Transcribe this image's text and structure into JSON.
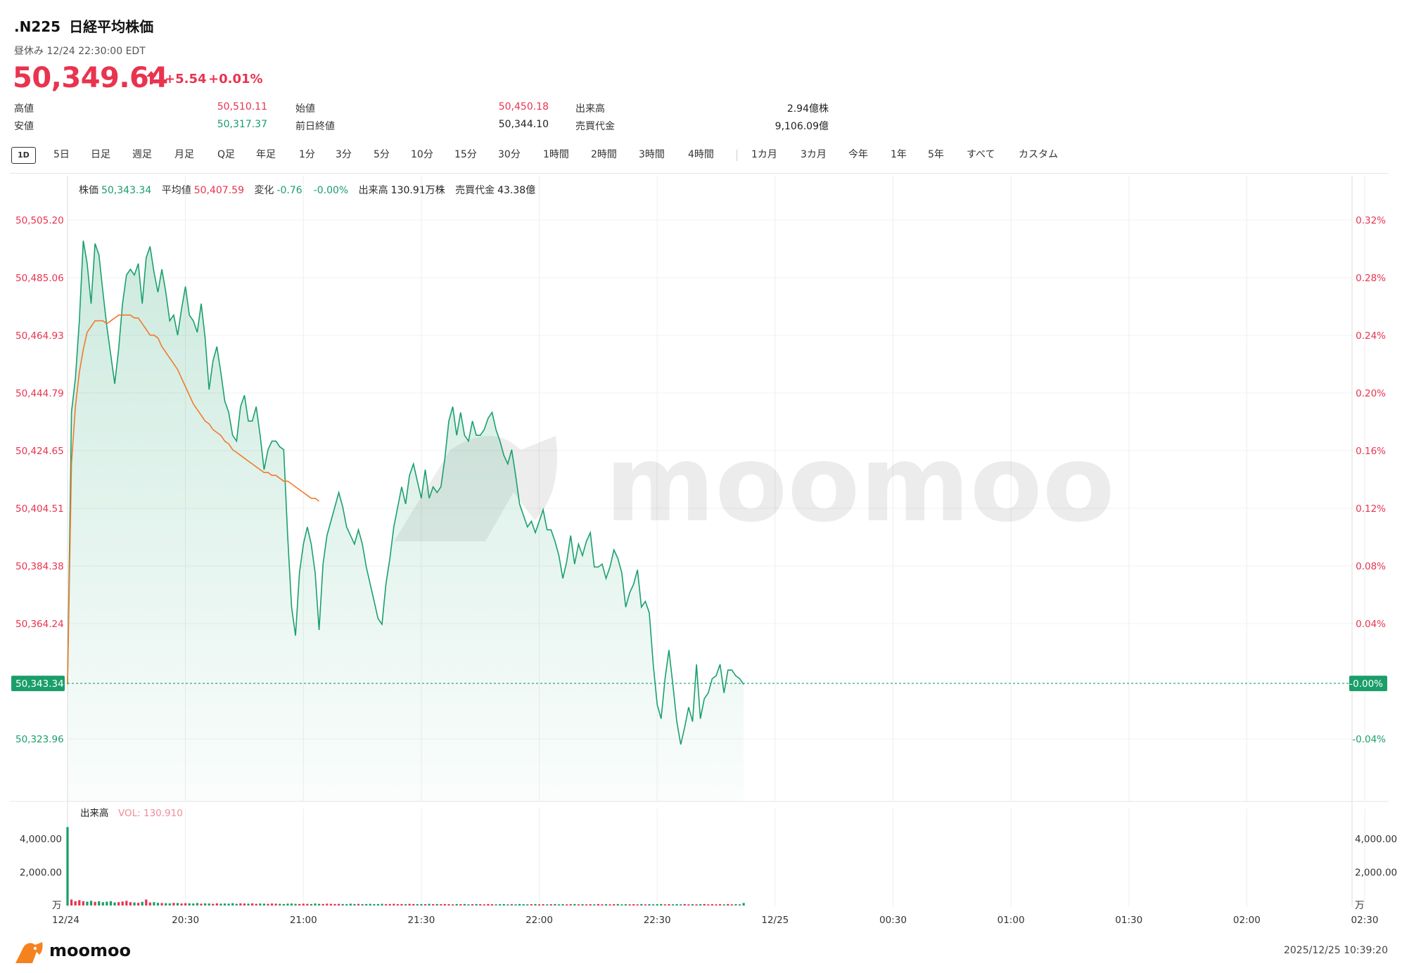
{
  "header": {
    "symbol": ".N225",
    "name": "日経平均株価",
    "status": "昼休み 12/24 22:30:00 EDT",
    "price": "50,349.64",
    "change": "+5.54",
    "change_pct": "+0.01%",
    "up_color": "#e8344f",
    "down_color": "#1a9e6a"
  },
  "stats": {
    "high_label": "高値",
    "high": "50,510.11",
    "low_label": "安値",
    "low": "50,317.37",
    "open_label": "始値",
    "open": "50,450.18",
    "prev_close_label": "前日終値",
    "prev_close": "50,344.10",
    "volume_label": "出来高",
    "volume": "2.94億株",
    "turnover_label": "売買代金",
    "turnover": "9,106.09億"
  },
  "tabs": [
    "1D",
    "5日",
    "日足",
    "週足",
    "月足",
    "Q足",
    "年足",
    "1分",
    "3分",
    "5分",
    "10分",
    "15分",
    "30分",
    "1時間",
    "2時間",
    "3時間",
    "4時間",
    "1カ月",
    "3カ月",
    "今年",
    "1年",
    "5年",
    "すべて",
    "カスタム"
  ],
  "active_tab": "1D",
  "infobar": {
    "price_label": "株価",
    "price": "50,343.34",
    "avg_label": "平均値",
    "avg": "50,407.59",
    "change_label": "変化",
    "change": "-0.76",
    "change_pct": "-0.00%",
    "vol_label": "出来高",
    "vol": "130.91万株",
    "turnover_label": "売買代金",
    "turnover": "43.38億"
  },
  "chart_data": {
    "type": "line",
    "y_ticks": [
      "50,505.20",
      "50,485.06",
      "50,464.93",
      "50,444.79",
      "50,424.65",
      "50,404.51",
      "50,384.38",
      "50,364.24",
      "50,323.96"
    ],
    "y_tick_values": [
      50505.2,
      50485.06,
      50464.93,
      50444.79,
      50424.65,
      50404.51,
      50384.38,
      50364.24,
      50323.96
    ],
    "pct_ticks": [
      "0.32%",
      "0.28%",
      "0.24%",
      "0.20%",
      "0.16%",
      "0.12%",
      "0.08%",
      "0.04%",
      "-0.04%"
    ],
    "pct_tick_values": [
      50505.2,
      50485.06,
      50464.93,
      50444.79,
      50424.65,
      50404.51,
      50384.38,
      50364.24,
      50323.96
    ],
    "last_price_label": "50,343.34",
    "last_price": 50343.34,
    "zero_pct_label": "-0.00%",
    "x_ticks": [
      "12/24",
      "20:30",
      "21:00",
      "21:30",
      "22:00",
      "22:30",
      "12/25",
      "00:30",
      "01:00",
      "01:30",
      "02:00",
      "02:30"
    ],
    "x_tick_minutes": [
      0,
      30,
      60,
      90,
      120,
      150,
      180,
      210,
      240,
      270,
      300,
      330
    ],
    "price_series": [
      [
        0,
        50343
      ],
      [
        1,
        50438
      ],
      [
        2,
        50450
      ],
      [
        3,
        50470
      ],
      [
        4,
        50498
      ],
      [
        5,
        50490
      ],
      [
        6,
        50476
      ],
      [
        7,
        50497
      ],
      [
        8,
        50493
      ],
      [
        9,
        50480
      ],
      [
        10,
        50468
      ],
      [
        11,
        50458
      ],
      [
        12,
        50448
      ],
      [
        13,
        50460
      ],
      [
        14,
        50476
      ],
      [
        15,
        50486
      ],
      [
        16,
        50488
      ],
      [
        17,
        50486
      ],
      [
        18,
        50490
      ],
      [
        19,
        50476
      ],
      [
        20,
        50492
      ],
      [
        21,
        50496
      ],
      [
        22,
        50487
      ],
      [
        23,
        50480
      ],
      [
        24,
        50488
      ],
      [
        25,
        50480
      ],
      [
        26,
        50470
      ],
      [
        27,
        50472
      ],
      [
        28,
        50465
      ],
      [
        29,
        50474
      ],
      [
        30,
        50482
      ],
      [
        31,
        50472
      ],
      [
        32,
        50470
      ],
      [
        33,
        50466
      ],
      [
        34,
        50476
      ],
      [
        35,
        50464
      ],
      [
        36,
        50446
      ],
      [
        37,
        50456
      ],
      [
        38,
        50461
      ],
      [
        39,
        50452
      ],
      [
        40,
        50442
      ],
      [
        41,
        50438
      ],
      [
        42,
        50430
      ],
      [
        43,
        50428
      ],
      [
        44,
        50440
      ],
      [
        45,
        50444
      ],
      [
        46,
        50435
      ],
      [
        47,
        50435
      ],
      [
        48,
        50440
      ],
      [
        49,
        50430
      ],
      [
        50,
        50418
      ],
      [
        51,
        50425
      ],
      [
        52,
        50428
      ],
      [
        53,
        50428
      ],
      [
        54,
        50426
      ],
      [
        55,
        50425
      ],
      [
        56,
        50395
      ],
      [
        57,
        50370
      ],
      [
        58,
        50360
      ],
      [
        59,
        50382
      ],
      [
        60,
        50392
      ],
      [
        61,
        50398
      ],
      [
        62,
        50392
      ],
      [
        63,
        50382
      ],
      [
        64,
        50362
      ],
      [
        65,
        50385
      ],
      [
        66,
        50395
      ],
      [
        67,
        50400
      ],
      [
        68,
        50405
      ],
      [
        69,
        50410
      ],
      [
        70,
        50405
      ],
      [
        71,
        50398
      ],
      [
        72,
        50395
      ],
      [
        73,
        50392
      ],
      [
        74,
        50397
      ],
      [
        75,
        50392
      ],
      [
        76,
        50384
      ],
      [
        77,
        50378
      ],
      [
        78,
        50372
      ],
      [
        79,
        50366
      ],
      [
        80,
        50364
      ],
      [
        81,
        50378
      ],
      [
        82,
        50387
      ],
      [
        83,
        50398
      ],
      [
        84,
        50405
      ],
      [
        85,
        50412
      ],
      [
        86,
        50406
      ],
      [
        87,
        50416
      ],
      [
        88,
        50420
      ],
      [
        89,
        50414
      ],
      [
        90,
        50408
      ],
      [
        91,
        50418
      ],
      [
        92,
        50408
      ],
      [
        93,
        50412
      ],
      [
        94,
        50410
      ],
      [
        95,
        50412
      ],
      [
        96,
        50422
      ],
      [
        97,
        50435
      ],
      [
        98,
        50440
      ],
      [
        99,
        50430
      ],
      [
        100,
        50438
      ],
      [
        101,
        50430
      ],
      [
        102,
        50428
      ],
      [
        103,
        50435
      ],
      [
        104,
        50430
      ],
      [
        105,
        50430
      ],
      [
        106,
        50432
      ],
      [
        107,
        50436
      ],
      [
        108,
        50438
      ],
      [
        109,
        50432
      ],
      [
        110,
        50428
      ],
      [
        111,
        50423
      ],
      [
        112,
        50420
      ],
      [
        113,
        50425
      ],
      [
        114,
        50416
      ],
      [
        115,
        50406
      ],
      [
        116,
        50402
      ],
      [
        117,
        50398
      ],
      [
        118,
        50400
      ],
      [
        119,
        50396
      ],
      [
        120,
        50400
      ],
      [
        121,
        50404
      ],
      [
        122,
        50397
      ],
      [
        123,
        50397
      ],
      [
        124,
        50393
      ],
      [
        125,
        50388
      ],
      [
        126,
        50380
      ],
      [
        127,
        50386
      ],
      [
        128,
        50395
      ],
      [
        129,
        50385
      ],
      [
        130,
        50392
      ],
      [
        131,
        50388
      ],
      [
        132,
        50393
      ],
      [
        133,
        50396
      ],
      [
        134,
        50384
      ],
      [
        135,
        50384
      ],
      [
        136,
        50385
      ],
      [
        137,
        50380
      ],
      [
        138,
        50384
      ],
      [
        139,
        50390
      ],
      [
        140,
        50387
      ],
      [
        141,
        50382
      ],
      [
        142,
        50370
      ],
      [
        143,
        50375
      ],
      [
        144,
        50378
      ],
      [
        145,
        50383
      ],
      [
        146,
        50370
      ],
      [
        147,
        50372
      ],
      [
        148,
        50368
      ],
      [
        149,
        50350
      ],
      [
        150,
        50336
      ],
      [
        151,
        50331
      ],
      [
        152,
        50345
      ],
      [
        153,
        50355
      ],
      [
        154,
        50343
      ],
      [
        155,
        50330
      ],
      [
        156,
        50322
      ],
      [
        157,
        50328
      ],
      [
        158,
        50335
      ],
      [
        159,
        50330
      ],
      [
        160,
        50350
      ],
      [
        161,
        50331
      ],
      [
        162,
        50338
      ],
      [
        163,
        50340
      ],
      [
        164,
        50345
      ],
      [
        165,
        50346
      ],
      [
        166,
        50350
      ],
      [
        167,
        50340
      ],
      [
        168,
        50348
      ],
      [
        169,
        50348
      ],
      [
        170,
        50346
      ],
      [
        171,
        50345
      ],
      [
        172,
        50343
      ]
    ],
    "avg_series": [
      [
        0,
        50343
      ],
      [
        1,
        50420
      ],
      [
        2,
        50440
      ],
      [
        3,
        50452
      ],
      [
        4,
        50460
      ],
      [
        5,
        50466
      ],
      [
        6,
        50468
      ],
      [
        7,
        50470
      ],
      [
        8,
        50470
      ],
      [
        9,
        50470
      ],
      [
        10,
        50469
      ],
      [
        11,
        50470
      ],
      [
        12,
        50471
      ],
      [
        13,
        50472
      ],
      [
        14,
        50472
      ],
      [
        15,
        50472
      ],
      [
        16,
        50472
      ],
      [
        17,
        50471
      ],
      [
        18,
        50471
      ],
      [
        19,
        50469
      ],
      [
        20,
        50467
      ],
      [
        21,
        50465
      ],
      [
        22,
        50465
      ],
      [
        23,
        50464
      ],
      [
        24,
        50461
      ],
      [
        25,
        50459
      ],
      [
        26,
        50457
      ],
      [
        27,
        50455
      ],
      [
        28,
        50453
      ],
      [
        29,
        50450
      ],
      [
        30,
        50447
      ],
      [
        31,
        50444
      ],
      [
        32,
        50441
      ],
      [
        33,
        50439
      ],
      [
        34,
        50437
      ],
      [
        35,
        50435
      ],
      [
        36,
        50434
      ],
      [
        37,
        50432
      ],
      [
        38,
        50431
      ],
      [
        39,
        50430
      ],
      [
        40,
        50428
      ],
      [
        41,
        50427
      ],
      [
        42,
        50425
      ],
      [
        43,
        50424
      ],
      [
        44,
        50423
      ],
      [
        45,
        50422
      ],
      [
        46,
        50421
      ],
      [
        47,
        50420
      ],
      [
        48,
        50419
      ],
      [
        49,
        50418
      ],
      [
        50,
        50417
      ],
      [
        51,
        50417
      ],
      [
        52,
        50416
      ],
      [
        53,
        50416
      ],
      [
        54,
        50415
      ],
      [
        55,
        50414
      ],
      [
        56,
        50414
      ],
      [
        57,
        50413
      ],
      [
        58,
        50412
      ],
      [
        59,
        50411
      ],
      [
        60,
        50410
      ],
      [
        61,
        50409
      ],
      [
        62,
        50408
      ],
      [
        63,
        50408
      ],
      [
        64,
        50407
      ]
    ],
    "volume_label": "出来高",
    "vol_value_label": "VOL: 130.910",
    "vol_ticks": [
      "4,000.00",
      "2,000.00"
    ],
    "vol_tick_values": [
      4000,
      2000
    ],
    "vol_unit": "万",
    "volume_series": [
      4700,
      360,
      260,
      320,
      260,
      230,
      280,
      220,
      250,
      200,
      230,
      260,
      180,
      200,
      240,
      280,
      200,
      180,
      160,
      220,
      360,
      180,
      200,
      160,
      150,
      140,
      130,
      160,
      150,
      120,
      140,
      130,
      120,
      150,
      110,
      130,
      120,
      100,
      130,
      110,
      120,
      110,
      140,
      100,
      130,
      120,
      110,
      130,
      100,
      120,
      110,
      100,
      120,
      110,
      100,
      90,
      110,
      120,
      100,
      90,
      110,
      100,
      90,
      120,
      100,
      90,
      110,
      100,
      90,
      100,
      90,
      80,
      110,
      90,
      100,
      80,
      90,
      100,
      80,
      90,
      100,
      80,
      90,
      100,
      80,
      90,
      80,
      100,
      90,
      80,
      90,
      80,
      100,
      80,
      90,
      80,
      90,
      80,
      70,
      90,
      80,
      90,
      70,
      80,
      90,
      80,
      70,
      90,
      80,
      70,
      80,
      90,
      70,
      80,
      70,
      90,
      80,
      70,
      80,
      90,
      70,
      80,
      70,
      80,
      90,
      70,
      80,
      70,
      80,
      90,
      70,
      80,
      70,
      80,
      70,
      90,
      70,
      80,
      70,
      80,
      90,
      70,
      80,
      70,
      80,
      70,
      90,
      70,
      80,
      70,
      80,
      90,
      70,
      80,
      70,
      80,
      70,
      90,
      70,
      80,
      70,
      80,
      90,
      70,
      80,
      70,
      80,
      70,
      90,
      70,
      80,
      70,
      150
    ],
    "colors": {
      "price_line": "#1aa06d",
      "avg_line": "#f07a2c",
      "fill": "#1aa06d",
      "up": "#e8344f",
      "down": "#1a9e6a"
    }
  },
  "footer": {
    "logo_text": "moomoo",
    "timestamp": "2025/12/25 10:39:20"
  },
  "watermark": "moomoo"
}
